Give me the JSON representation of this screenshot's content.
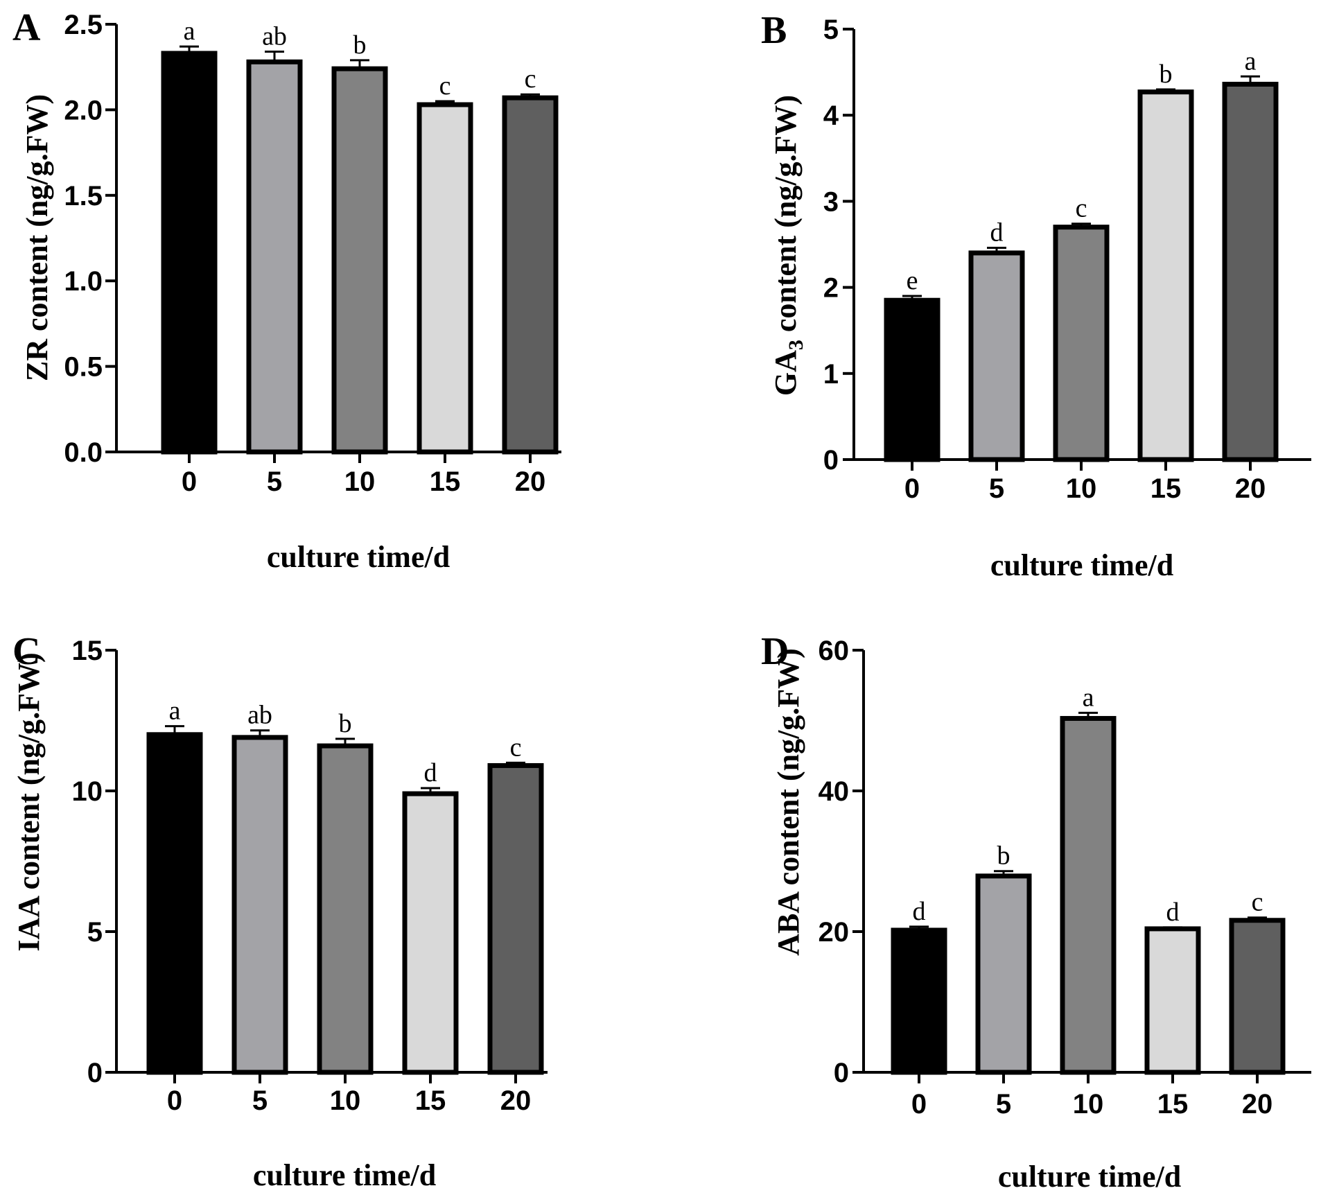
{
  "chart_data": [
    {
      "panel": "A",
      "type": "bar",
      "ylabel_main": "ZR content (ng/g.FW)",
      "ylabel_sub": "",
      "ylabel_rest": "",
      "xlabel": "culture time/d",
      "categories": [
        "0",
        "5",
        "10",
        "15",
        "20"
      ],
      "values": [
        2.33,
        2.28,
        2.24,
        2.03,
        2.07
      ],
      "errors": [
        0.04,
        0.06,
        0.05,
        0.02,
        0.02
      ],
      "significance": [
        "a",
        "ab",
        "b",
        "c",
        "c"
      ],
      "ylim": [
        0,
        2.5
      ],
      "yticks": [
        0,
        0.5,
        1.0,
        1.5,
        2.0,
        2.5
      ],
      "ytick_labels": [
        "0.0",
        "0.5",
        "1.0",
        "1.5",
        "2.0",
        "2.5"
      ],
      "colors": [
        "#000000",
        "#a3a3a7",
        "#828282",
        "#d9d9d9",
        "#5f5f5f"
      ]
    },
    {
      "panel": "B",
      "type": "bar",
      "ylabel_main": "GA",
      "ylabel_sub": "3",
      "ylabel_rest": " content (ng/g.FW)",
      "xlabel": "culture time/d",
      "categories": [
        "0",
        "5",
        "10",
        "15",
        "20"
      ],
      "values": [
        1.85,
        2.4,
        2.7,
        4.27,
        4.36
      ],
      "errors": [
        0.05,
        0.06,
        0.04,
        0.03,
        0.09
      ],
      "significance": [
        "e",
        "d",
        "c",
        "b",
        "a"
      ],
      "ylim": [
        0,
        5
      ],
      "yticks": [
        0,
        1,
        2,
        3,
        4,
        5
      ],
      "ytick_labels": [
        "0",
        "1",
        "2",
        "3",
        "4",
        "5"
      ],
      "colors": [
        "#000000",
        "#a3a3a7",
        "#828282",
        "#d9d9d9",
        "#5f5f5f"
      ]
    },
    {
      "panel": "C",
      "type": "bar",
      "ylabel_main": "IAA content (ng/g.FW)",
      "ylabel_sub": "",
      "ylabel_rest": "",
      "xlabel": "culture time/d",
      "categories": [
        "0",
        "5",
        "10",
        "15",
        "20"
      ],
      "values": [
        12.0,
        11.9,
        11.6,
        9.9,
        10.9
      ],
      "errors": [
        0.3,
        0.25,
        0.25,
        0.2,
        0.1
      ],
      "significance": [
        "a",
        "ab",
        "b",
        "d",
        "c"
      ],
      "ylim": [
        0,
        15
      ],
      "yticks": [
        0,
        5,
        10,
        15
      ],
      "ytick_labels": [
        "0",
        "5",
        "10",
        "15"
      ],
      "colors": [
        "#000000",
        "#a3a3a7",
        "#828282",
        "#d9d9d9",
        "#5f5f5f"
      ]
    },
    {
      "panel": "D",
      "type": "bar",
      "ylabel_main": "ABA content (ng/g.FW)",
      "ylabel_sub": "",
      "ylabel_rest": "",
      "xlabel": "culture time/d",
      "categories": [
        "0",
        "5",
        "10",
        "15",
        "20"
      ],
      "values": [
        20.2,
        27.9,
        50.3,
        20.4,
        21.6
      ],
      "errors": [
        0.5,
        0.7,
        0.8,
        0.2,
        0.4
      ],
      "significance": [
        "d",
        "b",
        "a",
        "d",
        "c"
      ],
      "ylim": [
        0,
        60
      ],
      "yticks": [
        0,
        20,
        40,
        60
      ],
      "ytick_labels": [
        "0",
        "20",
        "40",
        "60"
      ],
      "colors": [
        "#000000",
        "#a3a3a7",
        "#828282",
        "#d9d9d9",
        "#5f5f5f"
      ]
    }
  ]
}
